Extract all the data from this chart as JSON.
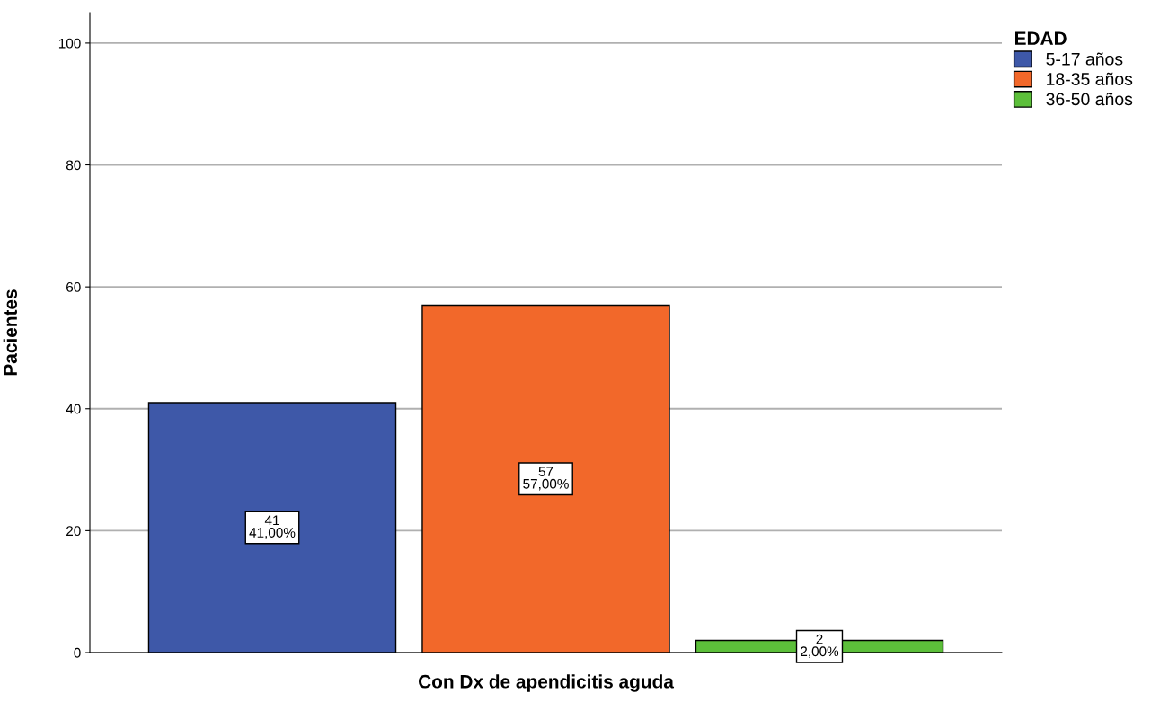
{
  "chart_data": {
    "type": "bar",
    "xlabel": "Con Dx de apendicitis aguda",
    "ylabel": "Pacientes",
    "legend_title": "EDAD",
    "categories": [
      null
    ],
    "series": [
      {
        "name": "5-17 años",
        "color": "#3e58a8",
        "values": [
          41
        ],
        "value_labels": [
          "41\n41,00%"
        ]
      },
      {
        "name": "18-35 años",
        "color": "#f2682a",
        "values": [
          57
        ],
        "value_labels": [
          "57\n57,00%"
        ]
      },
      {
        "name": "36-50 años",
        "color": "#5cbf3a",
        "values": [
          2
        ],
        "value_labels": [
          "2\n2,00%"
        ]
      }
    ],
    "ylim": [
      0,
      105
    ],
    "yticks": [
      0,
      20,
      40,
      60,
      80,
      100
    ],
    "grid": "y",
    "legend": "top right"
  }
}
